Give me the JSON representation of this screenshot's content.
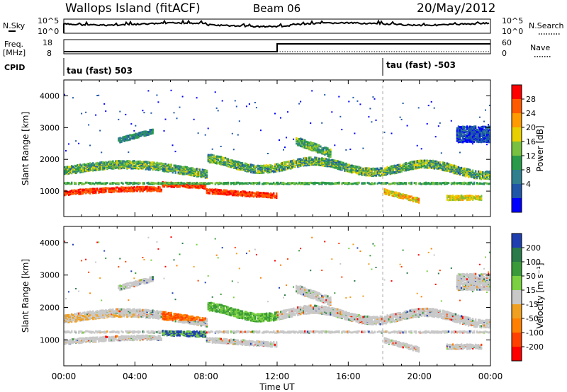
{
  "header": {
    "station": "Wallops Island (fitACF)",
    "beam": "Beam 06",
    "date": "20/May/2012"
  },
  "top_panels": {
    "nsky_label": "N.Sky",
    "nsearch_label": "N.Search",
    "sky_ticks": [
      "10^5",
      "10^0"
    ],
    "search_ticks": [
      "10^5",
      "10^0"
    ],
    "freq_label_line1": "Freq.",
    "freq_label_line2": "[MHz]",
    "freq_ticks": [
      "18",
      "8"
    ],
    "nave_label": "Nave",
    "nave_ticks": [
      "60",
      "0"
    ],
    "cpid_label": "CPID",
    "cpid_segments": [
      "tau (fast) 503",
      "tau (fast) -503"
    ]
  },
  "power_colorbar": {
    "title": "Power [dB]",
    "ticks": [
      "28",
      "24",
      "20",
      "16",
      "12",
      "8",
      "4"
    ],
    "colors": [
      "#ff0000",
      "#ff5a00",
      "#ff9a00",
      "#e8d000",
      "#78c040",
      "#2a9a4a",
      "#2f7f8f",
      "#1f56a8",
      "#0000ff"
    ]
  },
  "velocity_colorbar": {
    "title": "Velocity [m s⁻¹]",
    "ticks": [
      "200",
      "100",
      "50",
      "15",
      "-15",
      "-50",
      "-100",
      "-200"
    ],
    "colors": [
      "#1f3fb0",
      "#2a7a4a",
      "#3a9a3a",
      "#7ad040",
      "#c8c8c8",
      "#f0a020",
      "#ff8000",
      "#ff4000",
      "#ff0000"
    ]
  },
  "chart_data": [
    {
      "type": "heatmap",
      "title": "Power",
      "ylabel": "Slant Range [km]",
      "xlabel": "Time UT",
      "ylim": [
        200,
        4500
      ],
      "yticks": [
        1000,
        2000,
        3000,
        4000
      ],
      "xticks": [
        "00:00",
        "04:00",
        "08:00",
        "12:00",
        "16:00",
        "20:00",
        "00:00"
      ],
      "colorbar_label": "Power [dB]"
    },
    {
      "type": "heatmap",
      "title": "Velocity",
      "ylabel": "Slant Range [km]",
      "xlabel": "Time UT",
      "ylim": [
        200,
        4500
      ],
      "yticks": [
        1000,
        2000,
        3000,
        4000
      ],
      "xticks": [
        "00:00",
        "04:00",
        "08:00",
        "12:00",
        "16:00",
        "20:00",
        "00:00"
      ],
      "colorbar_label": "Velocity [m s⁻¹]"
    }
  ],
  "power_ylabel": "Slant Range [km]",
  "velocity_ylabel": "Slant Range [km]",
  "xaxis": {
    "title": "Time UT",
    "ticks": [
      "00:00",
      "04:00",
      "08:00",
      "12:00",
      "16:00",
      "20:00",
      "00:00"
    ]
  },
  "yaxis_ticks": [
    "1000",
    "2000",
    "3000",
    "4000"
  ]
}
